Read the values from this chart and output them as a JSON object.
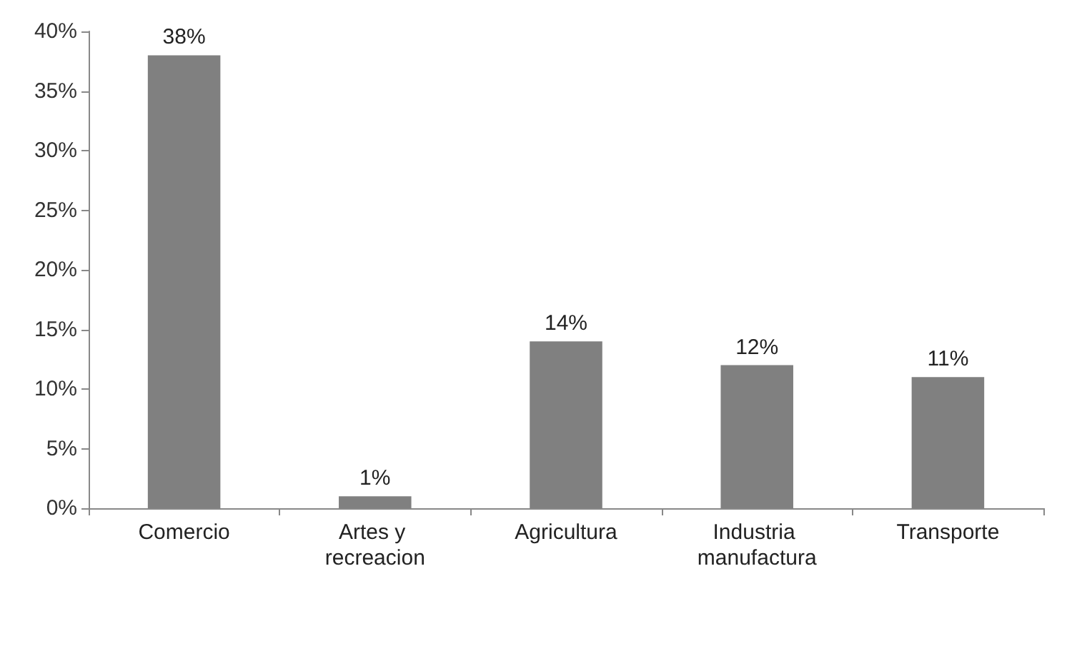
{
  "chart_data": {
    "type": "bar",
    "categories": [
      "Comercio",
      "Artes y recreacion",
      "Agricultura",
      "Industria manufactura",
      "Transporte"
    ],
    "values": [
      38,
      1,
      14,
      12,
      11
    ],
    "color": "#808080",
    "value_labels": [
      "38%",
      "1%",
      "14%",
      "12%",
      "11%"
    ],
    "ylim": [
      0,
      40
    ],
    "yticks": [
      {
        "value": 0,
        "label": "0%"
      },
      {
        "value": 5,
        "label": "5%"
      },
      {
        "value": 10,
        "label": "10%"
      },
      {
        "value": 15,
        "label": "15%"
      },
      {
        "value": 20,
        "label": "20%"
      },
      {
        "value": 25,
        "label": "25%"
      },
      {
        "value": 30,
        "label": "30%"
      },
      {
        "value": 35,
        "label": "35%"
      },
      {
        "value": 40,
        "label": "40%"
      }
    ],
    "grid": false
  }
}
